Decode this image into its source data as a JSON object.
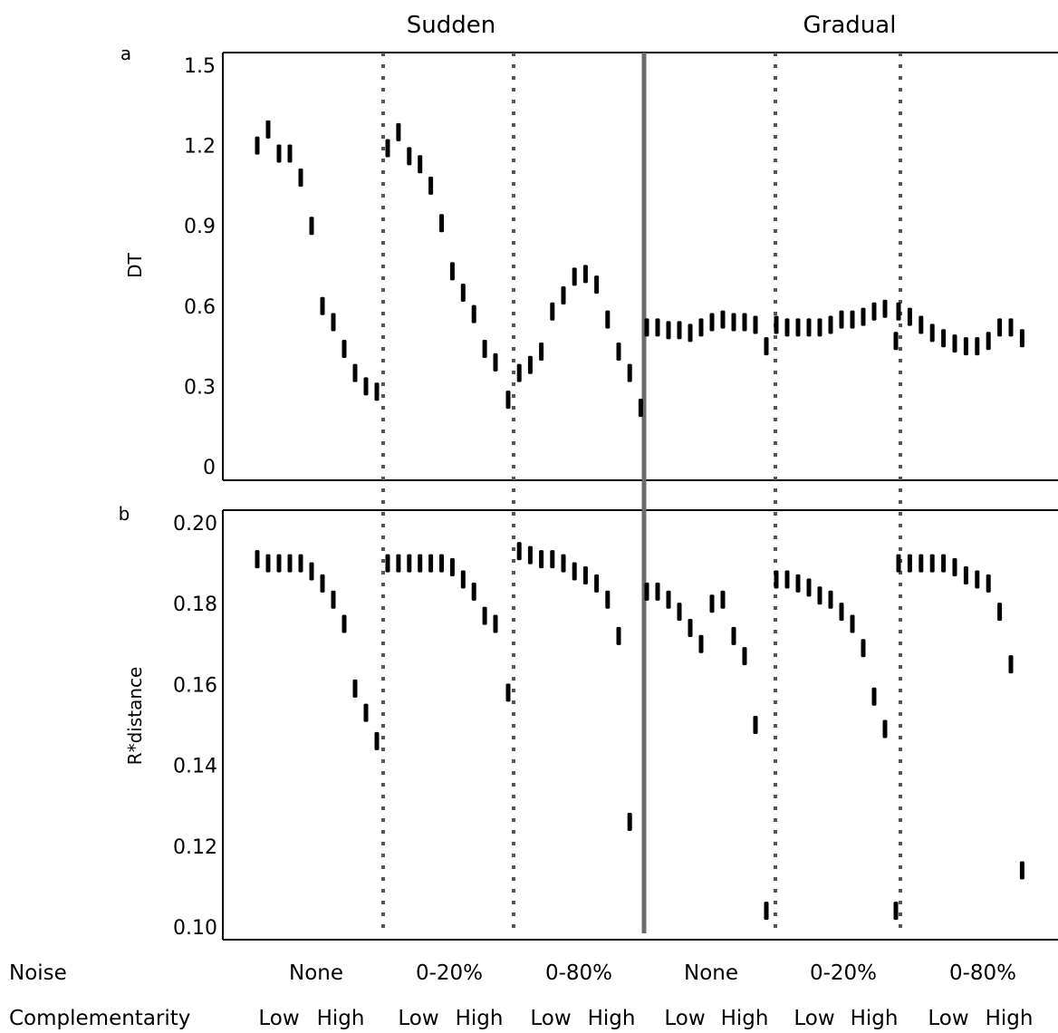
{
  "column_titles": {
    "sudden": "Sudden",
    "gradual": "Gradual"
  },
  "row_labels": {
    "noise": "Noise",
    "complementarity": "Complementarity"
  },
  "noise_levels": [
    "None",
    "0-20%",
    "0-80%",
    "None",
    "0-20%",
    "0-80%"
  ],
  "complementarity_levels": {
    "low": "Low",
    "high": "High"
  },
  "chart_data": [
    {
      "type": "scatter",
      "panel": "a",
      "title": "",
      "xlabel": "",
      "ylabel": "DT",
      "ylim": [
        0,
        1.5
      ],
      "yticks": [
        "0",
        "0.3",
        "0.6",
        "0.9",
        "1.2",
        "1.5"
      ],
      "grid": false,
      "marker": "vertical error bar",
      "groups": [
        {
          "treatment": "Sudden",
          "noise": "None",
          "values": [
            1.2,
            1.26,
            1.17,
            1.17,
            1.08,
            0.9,
            0.6,
            0.54,
            0.44,
            0.35,
            0.3,
            0.28
          ]
        },
        {
          "treatment": "Sudden",
          "noise": "0-20%",
          "values": [
            1.19,
            1.25,
            1.16,
            1.13,
            1.05,
            0.91,
            0.73,
            0.65,
            0.57,
            0.44,
            0.39
          ]
        },
        {
          "treatment": "Sudden",
          "noise": "0-80%",
          "values": [
            0.25,
            0.35,
            0.38,
            0.43,
            0.58,
            0.64,
            0.71,
            0.72,
            0.68,
            0.55,
            0.43,
            0.35,
            0.22
          ]
        },
        {
          "treatment": "Gradual",
          "noise": "None",
          "values": [
            0.52,
            0.52,
            0.51,
            0.51,
            0.5,
            0.52,
            0.54,
            0.55,
            0.54,
            0.54,
            0.53,
            0.45
          ]
        },
        {
          "treatment": "Gradual",
          "noise": "0-20%",
          "values": [
            0.53,
            0.52,
            0.52,
            0.52,
            0.52,
            0.53,
            0.55,
            0.55,
            0.56,
            0.58,
            0.59,
            0.47
          ]
        },
        {
          "treatment": "Gradual",
          "noise": "0-80%",
          "values": [
            0.58,
            0.56,
            0.53,
            0.5,
            0.48,
            0.46,
            0.45,
            0.45,
            0.47,
            0.52,
            0.52,
            0.48
          ]
        }
      ]
    },
    {
      "type": "scatter",
      "panel": "b",
      "title": "",
      "xlabel": "",
      "ylabel": "R*distance",
      "ylim": [
        0.1,
        0.2
      ],
      "yticks": [
        "0.10",
        "0.12",
        "0.14",
        "0.16",
        "0.18",
        "0.20"
      ],
      "grid": false,
      "marker": "vertical error bar",
      "groups": [
        {
          "treatment": "Sudden",
          "noise": "None",
          "values": [
            0.191,
            0.19,
            0.19,
            0.19,
            0.19,
            0.188,
            0.185,
            0.181,
            0.175,
            0.159,
            0.153,
            0.146
          ]
        },
        {
          "treatment": "Sudden",
          "noise": "0-20%",
          "values": [
            0.19,
            0.19,
            0.19,
            0.19,
            0.19,
            0.19,
            0.189,
            0.186,
            0.183,
            0.177,
            0.175
          ]
        },
        {
          "treatment": "Sudden",
          "noise": "0-80%",
          "values": [
            0.158,
            0.193,
            0.192,
            0.191,
            0.191,
            0.19,
            0.188,
            0.187,
            0.185,
            0.181,
            0.172,
            0.126
          ]
        },
        {
          "treatment": "Gradual",
          "noise": "None",
          "values": [
            0.183,
            0.183,
            0.181,
            0.178,
            0.174,
            0.17,
            0.18,
            0.181,
            0.172,
            0.167,
            0.15,
            0.104
          ]
        },
        {
          "treatment": "Gradual",
          "noise": "0-20%",
          "values": [
            0.186,
            0.186,
            0.185,
            0.184,
            0.182,
            0.181,
            0.178,
            0.175,
            0.169,
            0.157,
            0.149,
            0.104
          ]
        },
        {
          "treatment": "Gradual",
          "noise": "0-80%",
          "values": [
            0.19,
            0.19,
            0.19,
            0.19,
            0.19,
            0.189,
            0.187,
            0.186,
            0.185,
            0.178,
            0.165,
            0.114
          ]
        }
      ]
    }
  ]
}
